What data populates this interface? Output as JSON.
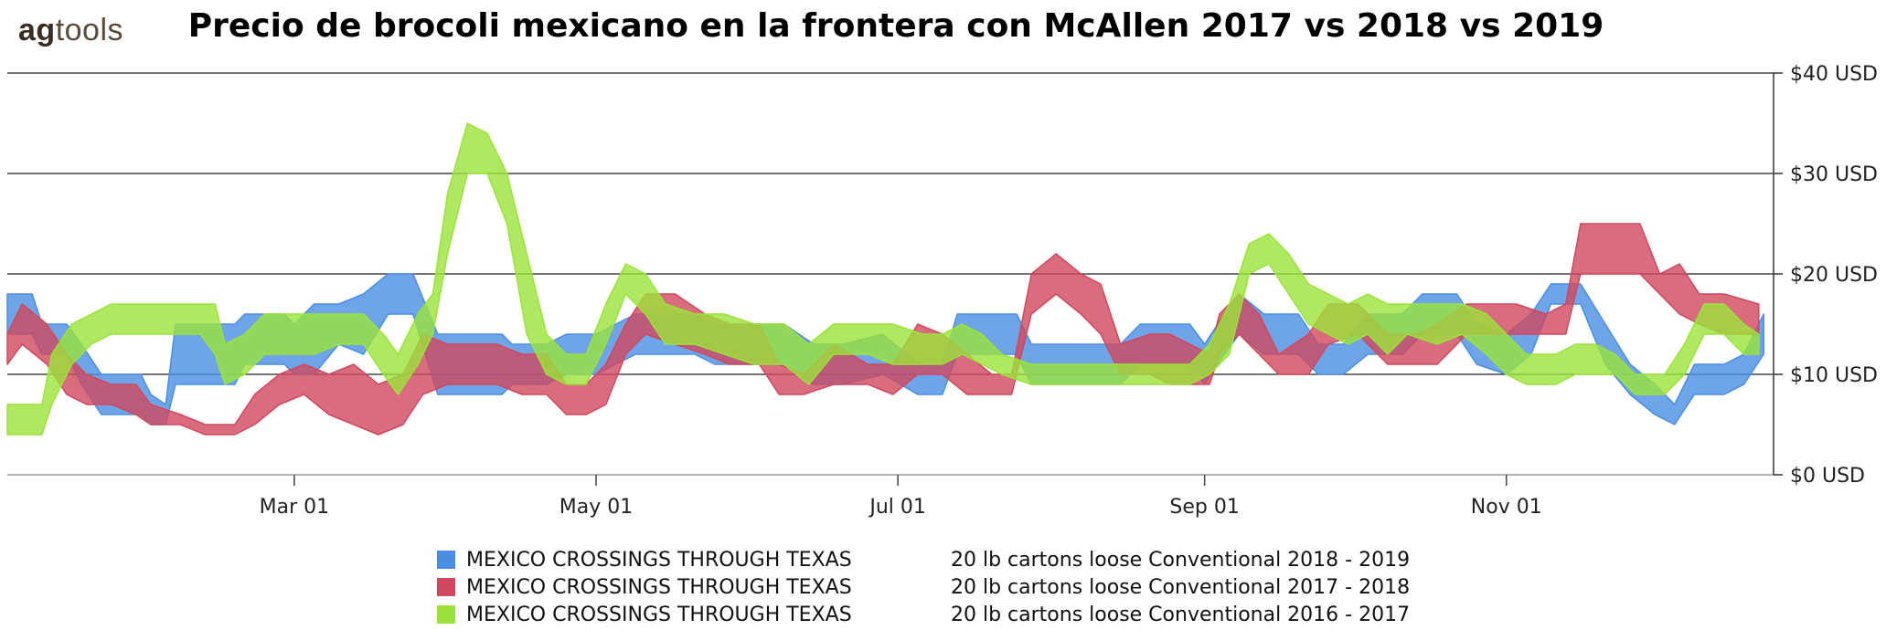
{
  "brand": {
    "part1": "ag",
    "part2": "tools"
  },
  "chart_data": {
    "type": "area",
    "title": "Precio de brocoli mexicano en la frontera con McAllen 2017 vs 2018 vs 2019",
    "y_axis": {
      "position": "right",
      "ticks": [
        "$0 USD",
        "$10 USD",
        "$20 USD",
        "$30 USD",
        "$40 USD"
      ],
      "tick_values": [
        0,
        10,
        20,
        30,
        40
      ],
      "ylim": [
        0,
        40
      ]
    },
    "x_axis": {
      "ticks": [
        "Mar 01",
        "May 01",
        "Jul 01",
        "Sep 01",
        "Nov 01"
      ],
      "tick_values": [
        59,
        120,
        181,
        243,
        304
      ],
      "xlim": [
        1,
        358
      ]
    },
    "grid": "horizontal",
    "legend_position": "bottom",
    "series": [
      {
        "region": "MEXICO CROSSINGS THROUGH TEXAS",
        "name": "20 lb cartons loose Conventional 2018 - 2019",
        "color": "#4a8ee3",
        "points": [
          [
            1,
            14,
            18
          ],
          [
            6,
            14,
            18
          ],
          [
            8,
            12,
            15
          ],
          [
            13,
            12,
            15
          ],
          [
            16,
            9,
            13
          ],
          [
            20,
            6,
            10
          ],
          [
            28,
            6,
            10
          ],
          [
            30,
            5,
            8
          ],
          [
            33,
            5,
            7
          ],
          [
            35,
            9,
            15
          ],
          [
            47,
            9,
            15
          ],
          [
            49,
            11,
            16
          ],
          [
            57,
            11,
            16
          ],
          [
            59,
            10,
            15
          ],
          [
            63,
            10,
            17
          ],
          [
            68,
            13,
            17
          ],
          [
            73,
            12,
            18
          ],
          [
            78,
            16,
            20
          ],
          [
            83,
            16,
            20
          ],
          [
            88,
            8,
            14
          ],
          [
            101,
            8,
            14
          ],
          [
            103,
            9,
            13
          ],
          [
            110,
            9,
            13
          ],
          [
            114,
            10,
            14
          ],
          [
            120,
            10,
            14
          ],
          [
            124,
            11,
            15
          ],
          [
            128,
            12,
            16
          ],
          [
            140,
            12,
            16
          ],
          [
            144,
            11,
            15
          ],
          [
            155,
            11,
            15
          ],
          [
            158,
            11,
            15
          ],
          [
            164,
            9,
            13
          ],
          [
            170,
            9,
            13
          ],
          [
            178,
            10,
            14
          ],
          [
            185,
            8,
            11
          ],
          [
            190,
            8,
            11
          ],
          [
            193,
            12,
            16
          ],
          [
            205,
            12,
            16
          ],
          [
            208,
            9,
            13
          ],
          [
            226,
            9,
            13
          ],
          [
            230,
            11,
            15
          ],
          [
            240,
            11,
            15
          ],
          [
            243,
            9,
            13
          ],
          [
            247,
            12,
            16
          ],
          [
            250,
            14,
            18
          ],
          [
            255,
            12,
            16
          ],
          [
            262,
            12,
            16
          ],
          [
            266,
            10,
            13
          ],
          [
            271,
            10,
            13
          ],
          [
            276,
            12,
            16
          ],
          [
            283,
            12,
            16
          ],
          [
            287,
            14,
            18
          ],
          [
            294,
            14,
            18
          ],
          [
            298,
            11,
            15
          ],
          [
            304,
            10,
            14
          ],
          [
            309,
            12,
            16
          ],
          [
            313,
            17,
            19
          ],
          [
            319,
            17,
            19
          ],
          [
            324,
            11,
            15
          ],
          [
            329,
            8,
            11
          ],
          [
            334,
            6,
            9
          ],
          [
            338,
            5,
            7
          ],
          [
            342,
            8,
            11
          ],
          [
            348,
            8,
            11
          ],
          [
            352,
            9,
            12
          ],
          [
            356,
            12,
            16
          ]
        ]
      },
      {
        "region": "MEXICO CROSSINGS THROUGH TEXAS",
        "name": "20 lb cartons loose Conventional 2017 - 2018",
        "color": "#d0485e",
        "points": [
          [
            1,
            11,
            14
          ],
          [
            4,
            13,
            17
          ],
          [
            9,
            11,
            15
          ],
          [
            13,
            8,
            12
          ],
          [
            17,
            7,
            10
          ],
          [
            22,
            7,
            9
          ],
          [
            27,
            6,
            9
          ],
          [
            30,
            5,
            7
          ],
          [
            36,
            5,
            6
          ],
          [
            41,
            4,
            5
          ],
          [
            47,
            4,
            5
          ],
          [
            51,
            5,
            8
          ],
          [
            56,
            7,
            10
          ],
          [
            61,
            8,
            11
          ],
          [
            66,
            6,
            10
          ],
          [
            71,
            5,
            11
          ],
          [
            76,
            4,
            9
          ],
          [
            81,
            5,
            10
          ],
          [
            85,
            8,
            14
          ],
          [
            90,
            9,
            13
          ],
          [
            95,
            9,
            13
          ],
          [
            100,
            9,
            13
          ],
          [
            105,
            8,
            12
          ],
          [
            110,
            8,
            12
          ],
          [
            114,
            6,
            9
          ],
          [
            118,
            6,
            9
          ],
          [
            122,
            7,
            11
          ],
          [
            126,
            12,
            15
          ],
          [
            130,
            14,
            18
          ],
          [
            136,
            13,
            18
          ],
          [
            142,
            12,
            16
          ],
          [
            147,
            11,
            15
          ],
          [
            153,
            11,
            15
          ],
          [
            157,
            8,
            11
          ],
          [
            162,
            8,
            10
          ],
          [
            168,
            9,
            13
          ],
          [
            175,
            9,
            11
          ],
          [
            180,
            8,
            11
          ],
          [
            185,
            10,
            15
          ],
          [
            190,
            10,
            14
          ],
          [
            195,
            8,
            12
          ],
          [
            200,
            8,
            10
          ],
          [
            204,
            8,
            10
          ],
          [
            208,
            16,
            20
          ],
          [
            213,
            18,
            22
          ],
          [
            218,
            16,
            20
          ],
          [
            222,
            14,
            19
          ],
          [
            226,
            10,
            13
          ],
          [
            232,
            10,
            14
          ],
          [
            236,
            9,
            14
          ],
          [
            240,
            9,
            13
          ],
          [
            244,
            9,
            12
          ],
          [
            246,
            12,
            16
          ],
          [
            250,
            14,
            18
          ],
          [
            254,
            12,
            16
          ],
          [
            258,
            10,
            12
          ],
          [
            264,
            10,
            14
          ],
          [
            268,
            13,
            17
          ],
          [
            274,
            14,
            17
          ],
          [
            280,
            11,
            14
          ],
          [
            286,
            11,
            14
          ],
          [
            290,
            11,
            15
          ],
          [
            296,
            14,
            17
          ],
          [
            302,
            14,
            17
          ],
          [
            306,
            14,
            17
          ],
          [
            312,
            14,
            16
          ],
          [
            316,
            14,
            17
          ],
          [
            319,
            20,
            25
          ],
          [
            325,
            20,
            25
          ],
          [
            331,
            20,
            25
          ],
          [
            335,
            18,
            20
          ],
          [
            339,
            16,
            21
          ],
          [
            343,
            15,
            18
          ],
          [
            348,
            14,
            18
          ],
          [
            355,
            14,
            17
          ]
        ]
      },
      {
        "region": "MEXICO CROSSINGS THROUGH TEXAS",
        "name": "20 lb cartons loose Conventional 2016 - 2017",
        "color": "#9be33a",
        "points": [
          [
            1,
            4,
            7
          ],
          [
            5,
            4,
            7
          ],
          [
            8,
            4,
            7
          ],
          [
            10,
            7,
            12
          ],
          [
            14,
            11,
            15
          ],
          [
            18,
            13,
            16
          ],
          [
            22,
            14,
            17
          ],
          [
            25,
            14,
            17
          ],
          [
            30,
            14,
            17
          ],
          [
            36,
            14,
            17
          ],
          [
            40,
            14,
            17
          ],
          [
            43,
            12,
            17
          ],
          [
            45,
            9,
            13
          ],
          [
            49,
            10,
            14
          ],
          [
            53,
            12,
            16
          ],
          [
            58,
            12,
            16
          ],
          [
            63,
            12,
            16
          ],
          [
            68,
            13,
            16
          ],
          [
            73,
            13,
            16
          ],
          [
            77,
            10,
            14
          ],
          [
            80,
            8,
            12
          ],
          [
            84,
            11,
            16
          ],
          [
            87,
            14,
            18
          ],
          [
            90,
            22,
            28
          ],
          [
            94,
            30,
            35
          ],
          [
            98,
            30,
            34
          ],
          [
            102,
            25,
            30
          ],
          [
            106,
            14,
            22
          ],
          [
            110,
            10,
            14
          ],
          [
            114,
            9,
            12
          ],
          [
            118,
            9,
            12
          ],
          [
            122,
            13,
            17
          ],
          [
            126,
            18,
            21
          ],
          [
            130,
            16,
            20
          ],
          [
            134,
            13,
            17
          ],
          [
            140,
            13,
            16
          ],
          [
            146,
            12,
            16
          ],
          [
            152,
            11,
            15
          ],
          [
            158,
            11,
            15
          ],
          [
            163,
            9,
            13
          ],
          [
            168,
            12,
            15
          ],
          [
            175,
            12,
            15
          ],
          [
            180,
            11,
            15
          ],
          [
            186,
            11,
            14
          ],
          [
            190,
            11,
            14
          ],
          [
            194,
            12,
            15
          ],
          [
            198,
            11,
            14
          ],
          [
            202,
            10,
            12
          ],
          [
            208,
            9,
            11
          ],
          [
            214,
            9,
            11
          ],
          [
            224,
            9,
            11
          ],
          [
            232,
            9,
            11
          ],
          [
            240,
            9,
            11
          ],
          [
            244,
            10,
            13
          ],
          [
            248,
            12,
            17
          ],
          [
            252,
            20,
            23
          ],
          [
            256,
            21,
            24
          ],
          [
            260,
            18,
            22
          ],
          [
            264,
            15,
            19
          ],
          [
            268,
            14,
            18
          ],
          [
            272,
            13,
            17
          ],
          [
            276,
            14,
            18
          ],
          [
            280,
            12,
            17
          ],
          [
            284,
            14,
            17
          ],
          [
            290,
            13,
            17
          ],
          [
            295,
            14,
            17
          ],
          [
            300,
            12,
            16
          ],
          [
            304,
            10,
            14
          ],
          [
            308,
            9,
            12
          ],
          [
            314,
            9,
            12
          ],
          [
            318,
            10,
            13
          ],
          [
            322,
            10,
            13
          ],
          [
            326,
            10,
            12
          ],
          [
            330,
            8,
            10
          ],
          [
            336,
            8,
            10
          ],
          [
            340,
            10,
            13
          ],
          [
            344,
            14,
            17
          ],
          [
            348,
            14,
            17
          ],
          [
            352,
            12,
            15
          ],
          [
            355,
            12,
            14
          ]
        ]
      }
    ]
  }
}
